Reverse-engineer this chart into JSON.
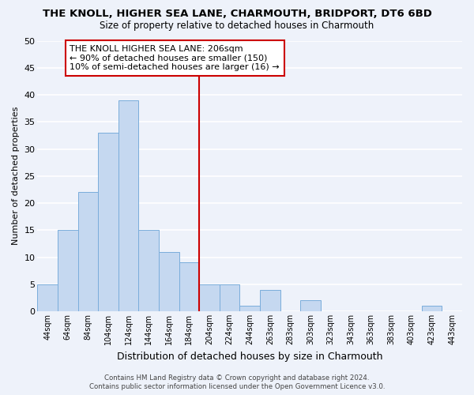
{
  "title": "THE KNOLL, HIGHER SEA LANE, CHARMOUTH, BRIDPORT, DT6 6BD",
  "subtitle": "Size of property relative to detached houses in Charmouth",
  "xlabel": "Distribution of detached houses by size in Charmouth",
  "ylabel": "Number of detached properties",
  "bar_color": "#c5d8f0",
  "bar_edge_color": "#7aaddb",
  "background_color": "#eef2fa",
  "grid_color": "#ffffff",
  "bin_labels": [
    "44sqm",
    "64sqm",
    "84sqm",
    "104sqm",
    "124sqm",
    "144sqm",
    "164sqm",
    "184sqm",
    "204sqm",
    "224sqm",
    "244sqm",
    "263sqm",
    "283sqm",
    "303sqm",
    "323sqm",
    "343sqm",
    "363sqm",
    "383sqm",
    "403sqm",
    "423sqm",
    "443sqm"
  ],
  "bar_heights": [
    5,
    15,
    22,
    33,
    39,
    15,
    11,
    9,
    5,
    5,
    1,
    4,
    0,
    2,
    0,
    0,
    0,
    0,
    0,
    1,
    0
  ],
  "ylim": [
    0,
    50
  ],
  "yticks": [
    0,
    5,
    10,
    15,
    20,
    25,
    30,
    35,
    40,
    45,
    50
  ],
  "vline_color": "#cc0000",
  "vline_bin": 8,
  "annotation_title": "THE KNOLL HIGHER SEA LANE: 206sqm",
  "annotation_line1": "← 90% of detached houses are smaller (150)",
  "annotation_line2": "10% of semi-detached houses are larger (16) →",
  "annotation_box_color": "#ffffff",
  "annotation_border_color": "#cc0000",
  "footer_line1": "Contains HM Land Registry data © Crown copyright and database right 2024.",
  "footer_line2": "Contains public sector information licensed under the Open Government Licence v3.0."
}
